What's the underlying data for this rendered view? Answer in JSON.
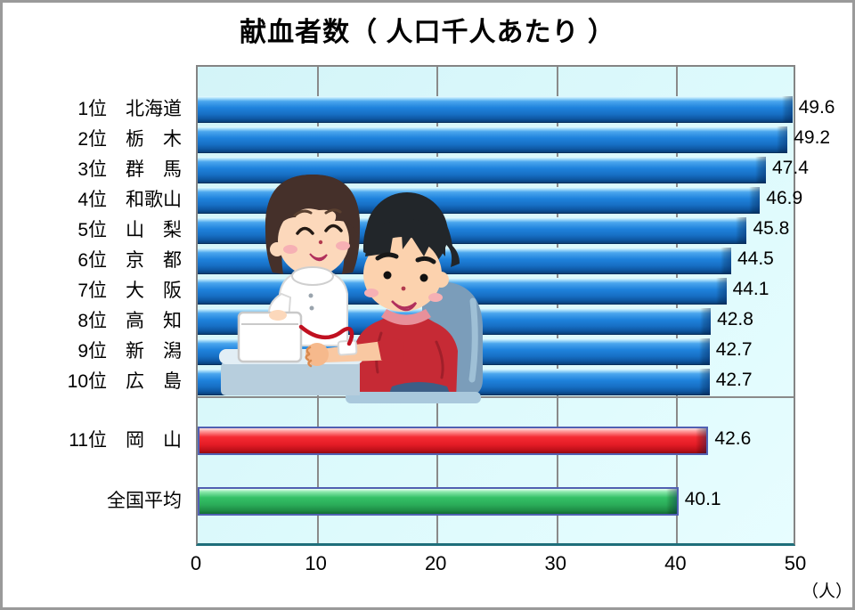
{
  "title": "献血者数（ 人口千人あたり ）",
  "axis": {
    "unit": "（人）"
  },
  "illustration": "blood-donation-scene",
  "chart_data": {
    "type": "bar",
    "orientation": "horizontal",
    "title": "献血者数（ 人口千人あたり ）",
    "categories": [
      "1位　北海道",
      "2位　栃　木",
      "3位　群　馬",
      "4位　和歌山",
      "5位　山　梨",
      "6位　京　都",
      "7位　大　阪",
      "8位　高　知",
      "9位　新　潟",
      "10位　広　島",
      "11位　岡　山",
      "全国平均"
    ],
    "values": [
      49.6,
      49.2,
      47.4,
      46.9,
      45.8,
      44.5,
      44.1,
      42.8,
      42.7,
      42.7,
      42.6,
      40.1
    ],
    "bar_colors": [
      "blue",
      "blue",
      "blue",
      "blue",
      "blue",
      "blue",
      "blue",
      "blue",
      "blue",
      "blue",
      "red",
      "green"
    ],
    "xlim": [
      0,
      50
    ],
    "xticks": [
      0,
      10,
      20,
      30,
      40,
      50
    ],
    "unit_label": "（人）",
    "grid": "vertical",
    "legend": "none",
    "colors": {
      "blue": "#1d7fd6",
      "red": "#ee1c25",
      "green": "#2eb45c",
      "plot_background": "#dcf9fc",
      "gridline": "#8a8a8a",
      "plot_border": "#848484",
      "plot_border_bottom": "#1e6e7a"
    }
  }
}
